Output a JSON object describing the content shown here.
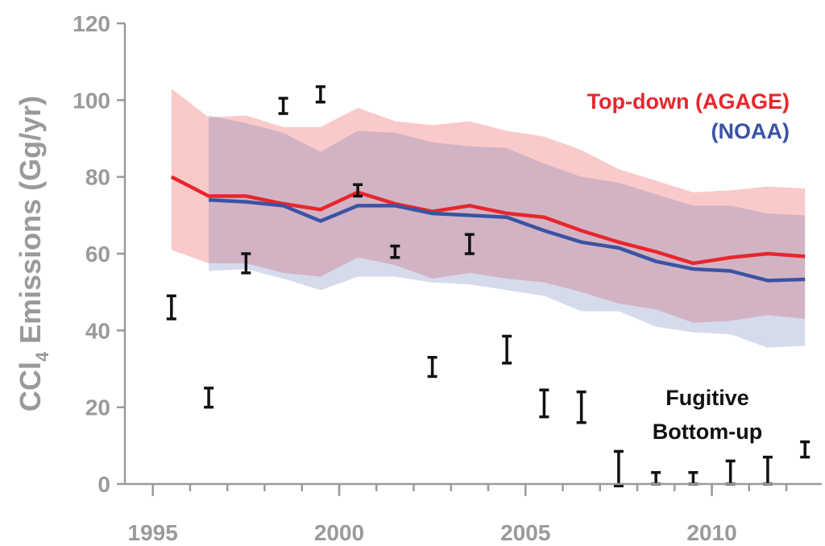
{
  "chart_data": {
    "type": "line",
    "ylabel_parts": [
      "CCl",
      "4",
      " Emissions (Gg/yr)"
    ],
    "x": [
      1995.5,
      1996.5,
      1997.5,
      1998.5,
      1999.5,
      2000.5,
      2001.5,
      2002.5,
      2003.5,
      2004.5,
      2005.5,
      2006.5,
      2007.5,
      2008.5,
      2009.5,
      2010.5,
      2011.5,
      2012.5
    ],
    "xlim": [
      1994.25,
      2012.95
    ],
    "xticks": [
      1995,
      2000,
      2005,
      2010
    ],
    "xminor": [
      1995,
      1996,
      1997,
      1998,
      1999,
      2000,
      2001,
      2002,
      2003,
      2004,
      2005,
      2006,
      2007,
      2008,
      2009,
      2010,
      2011,
      2012
    ],
    "ylim": [
      0,
      120
    ],
    "yticks": [
      0,
      20,
      40,
      60,
      80,
      100,
      120
    ],
    "series": [
      {
        "name": "Top-down (AGAGE)",
        "color": "#e8262c",
        "band_color": "rgba(240,90,90,0.32)",
        "values": [
          80,
          75,
          75,
          73,
          71.5,
          76,
          73,
          71,
          72.5,
          70.5,
          69.5,
          66,
          63,
          60.5,
          57.5,
          59,
          60,
          59.3
        ],
        "upper": [
          103,
          95.5,
          96,
          93,
          93,
          98,
          94.5,
          93.5,
          94.5,
          92,
          90.5,
          87,
          82,
          79,
          76,
          76.5,
          77.5,
          77
        ],
        "lower": [
          61,
          57.5,
          57.5,
          55,
          54,
          59,
          57,
          53.5,
          55,
          53.5,
          52.5,
          50,
          47,
          45.5,
          42,
          42.5,
          44,
          43
        ]
      },
      {
        "name": "(NOAA)",
        "color": "#3b53a4",
        "band_color": "rgba(90,110,180,0.25)",
        "values": [
          null,
          74,
          73.5,
          72.5,
          68.5,
          72.5,
          72.5,
          70.5,
          70,
          69.5,
          66,
          63,
          61.5,
          58,
          56,
          55.5,
          53,
          53.3
        ],
        "upper": [
          null,
          96,
          94,
          91.5,
          86.5,
          92,
          91.5,
          89,
          88,
          87.5,
          83.5,
          80,
          78.5,
          75.5,
          72.5,
          72.5,
          70.5,
          70
        ],
        "lower": [
          null,
          55.5,
          56,
          53.5,
          50.5,
          54,
          54,
          52.5,
          52,
          50.5,
          49,
          45,
          45,
          41,
          39.5,
          39,
          35.5,
          36
        ]
      }
    ],
    "bottom_up": {
      "name_lines": [
        "Fugitive",
        "Bottom-up"
      ],
      "color": "#111111",
      "values": [
        46,
        22.5,
        57.5,
        98.5,
        101.5,
        76.5,
        60.5,
        30.5,
        62.5,
        35,
        21,
        20,
        4,
        1.5,
        1.5,
        3,
        3.5,
        9
      ],
      "errors": [
        3,
        2.5,
        2.5,
        2,
        2,
        1.5,
        1.5,
        2.5,
        2.5,
        3.5,
        3.5,
        4,
        4.5,
        1.5,
        1.5,
        3,
        3.5,
        2
      ]
    },
    "legend": "upper right"
  }
}
